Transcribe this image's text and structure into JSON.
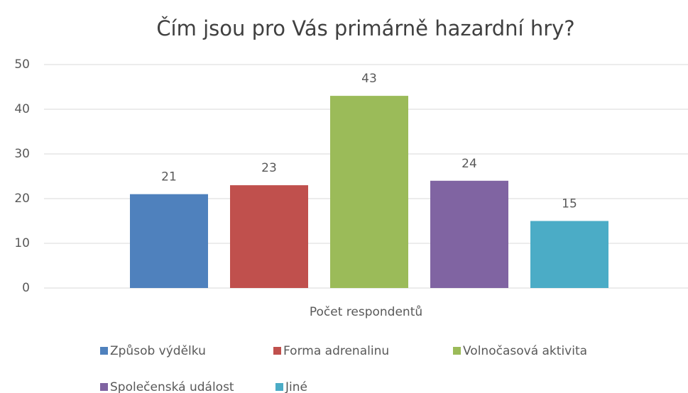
{
  "chart_data": {
    "type": "bar",
    "title": "Čím jsou pro Vás primárně hazardní hry?",
    "categories": [
      "Počet respondentů"
    ],
    "series": [
      {
        "name": "Způsob výdělku",
        "color": "#4f81bd",
        "values": [
          21
        ]
      },
      {
        "name": "Forma adrenalinu",
        "color": "#c0504d",
        "values": [
          23
        ]
      },
      {
        "name": "Volnočasová aktivita",
        "color": "#9bbb59",
        "values": [
          43
        ]
      },
      {
        "name": "Společenská událost",
        "color": "#8064a2",
        "values": [
          24
        ]
      },
      {
        "name": "Jiné",
        "color": "#4bacc6",
        "values": [
          15
        ]
      }
    ],
    "ylim": [
      0,
      50
    ],
    "yticks": [
      0,
      10,
      20,
      30,
      40,
      50
    ],
    "grid": true,
    "legend": "bottom"
  }
}
